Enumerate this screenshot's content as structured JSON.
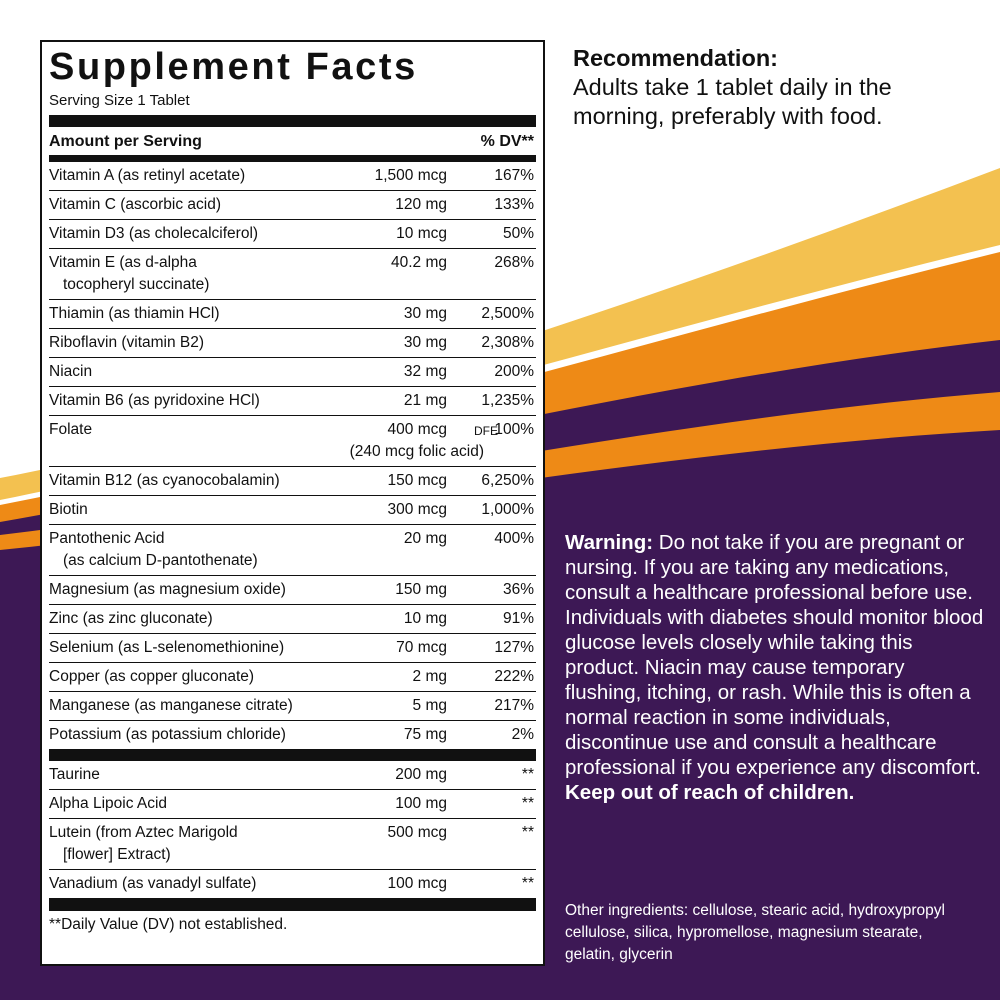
{
  "label": {
    "title": "Supplement Facts",
    "serving_size": "Serving Size 1 Tablet",
    "header_amount": "Amount per Serving",
    "header_dv": "% DV**",
    "nutrients": [
      {
        "name": [
          "Vitamin A (as retinyl acetate)"
        ],
        "amount": "1,500 mcg",
        "dv": "167%"
      },
      {
        "name": [
          "Vitamin C (ascorbic acid)"
        ],
        "amount": "120 mg",
        "dv": "133%"
      },
      {
        "name": [
          "Vitamin D3 (as cholecalciferol)"
        ],
        "amount": "10 mcg",
        "dv": "50%"
      },
      {
        "name": [
          "Vitamin E (as d-alpha",
          "tocopheryl succinate)"
        ],
        "amount": "40.2 mg",
        "dv": "268%"
      },
      {
        "name": [
          "Thiamin (as thiamin HCl)"
        ],
        "amount": "30 mg",
        "dv": "2,500%"
      },
      {
        "name": [
          "Riboflavin (vitamin B2)"
        ],
        "amount": "30 mg",
        "dv": "2,308%"
      },
      {
        "name": [
          "Niacin"
        ],
        "amount": "32 mg",
        "dv": "200%"
      },
      {
        "name": [
          "Vitamin B6 (as pyridoxine HCl)"
        ],
        "amount": "21 mg",
        "dv": "1,235%"
      },
      {
        "name": [
          "Folate"
        ],
        "amount": "400 mcg",
        "amount_unit": "DFE",
        "amount_note": "(240 mcg folic acid)",
        "dv": "100%"
      },
      {
        "name": [
          "Vitamin B12 (as cyanocobalamin)"
        ],
        "amount": "150 mcg",
        "dv": "6,250%"
      },
      {
        "name": [
          "Biotin"
        ],
        "amount": "300 mcg",
        "dv": "1,000%"
      },
      {
        "name": [
          "Pantothenic Acid",
          "(as calcium D-pantothenate)"
        ],
        "amount": "20 mg",
        "dv": "400%"
      },
      {
        "name": [
          "Magnesium (as magnesium oxide)"
        ],
        "amount": "150 mg",
        "dv": "36%"
      },
      {
        "name": [
          "Zinc (as zinc gluconate)"
        ],
        "amount": "10 mg",
        "dv": "91%"
      },
      {
        "name": [
          "Selenium (as L-selenomethionine)"
        ],
        "amount": "70 mcg",
        "dv": "127%"
      },
      {
        "name": [
          "Copper (as copper gluconate)"
        ],
        "amount": "2 mg",
        "dv": "222%"
      },
      {
        "name": [
          "Manganese (as manganese citrate)"
        ],
        "amount": "5 mg",
        "dv": "217%"
      },
      {
        "name": [
          "Potassium (as potassium chloride)"
        ],
        "amount": "75 mg",
        "dv": "2%"
      }
    ],
    "other_nutrients": [
      {
        "name": [
          "Taurine"
        ],
        "amount": "200 mg",
        "dv": "**"
      },
      {
        "name": [
          "Alpha Lipoic Acid"
        ],
        "amount": "100 mg",
        "dv": "**"
      },
      {
        "name": [
          "Lutein (from Aztec Marigold",
          "[flower] Extract)"
        ],
        "amount": "500 mcg",
        "dv": "**"
      },
      {
        "name": [
          "Vanadium (as vanadyl sulfate)"
        ],
        "amount": "100 mcg",
        "dv": "**"
      }
    ],
    "footnote": "**Daily Value (DV) not established."
  },
  "recommendation": {
    "title": "Recommendation:",
    "text": "Adults take 1 tablet daily in the morning, preferably with food."
  },
  "warning": {
    "title": "Warning:",
    "text": "Do not take if you are pregnant or nursing. If you are taking any medications, consult a healthcare professional before use. Individuals with diabetes should monitor blood glucose levels closely while taking this product. Niacin may cause temporary flushing, itching, or rash. While this is often a normal reaction in some individuals, discontinue use and consult a healthcare professional if you experience any discomfort.",
    "emphasis": "Keep out of reach of children."
  },
  "other_ingredients": "Other ingredients: cellulose, stearic acid, hydroxypropyl cellulose, silica, hypromellose, magnesium stearate, gelatin, glycerin"
}
